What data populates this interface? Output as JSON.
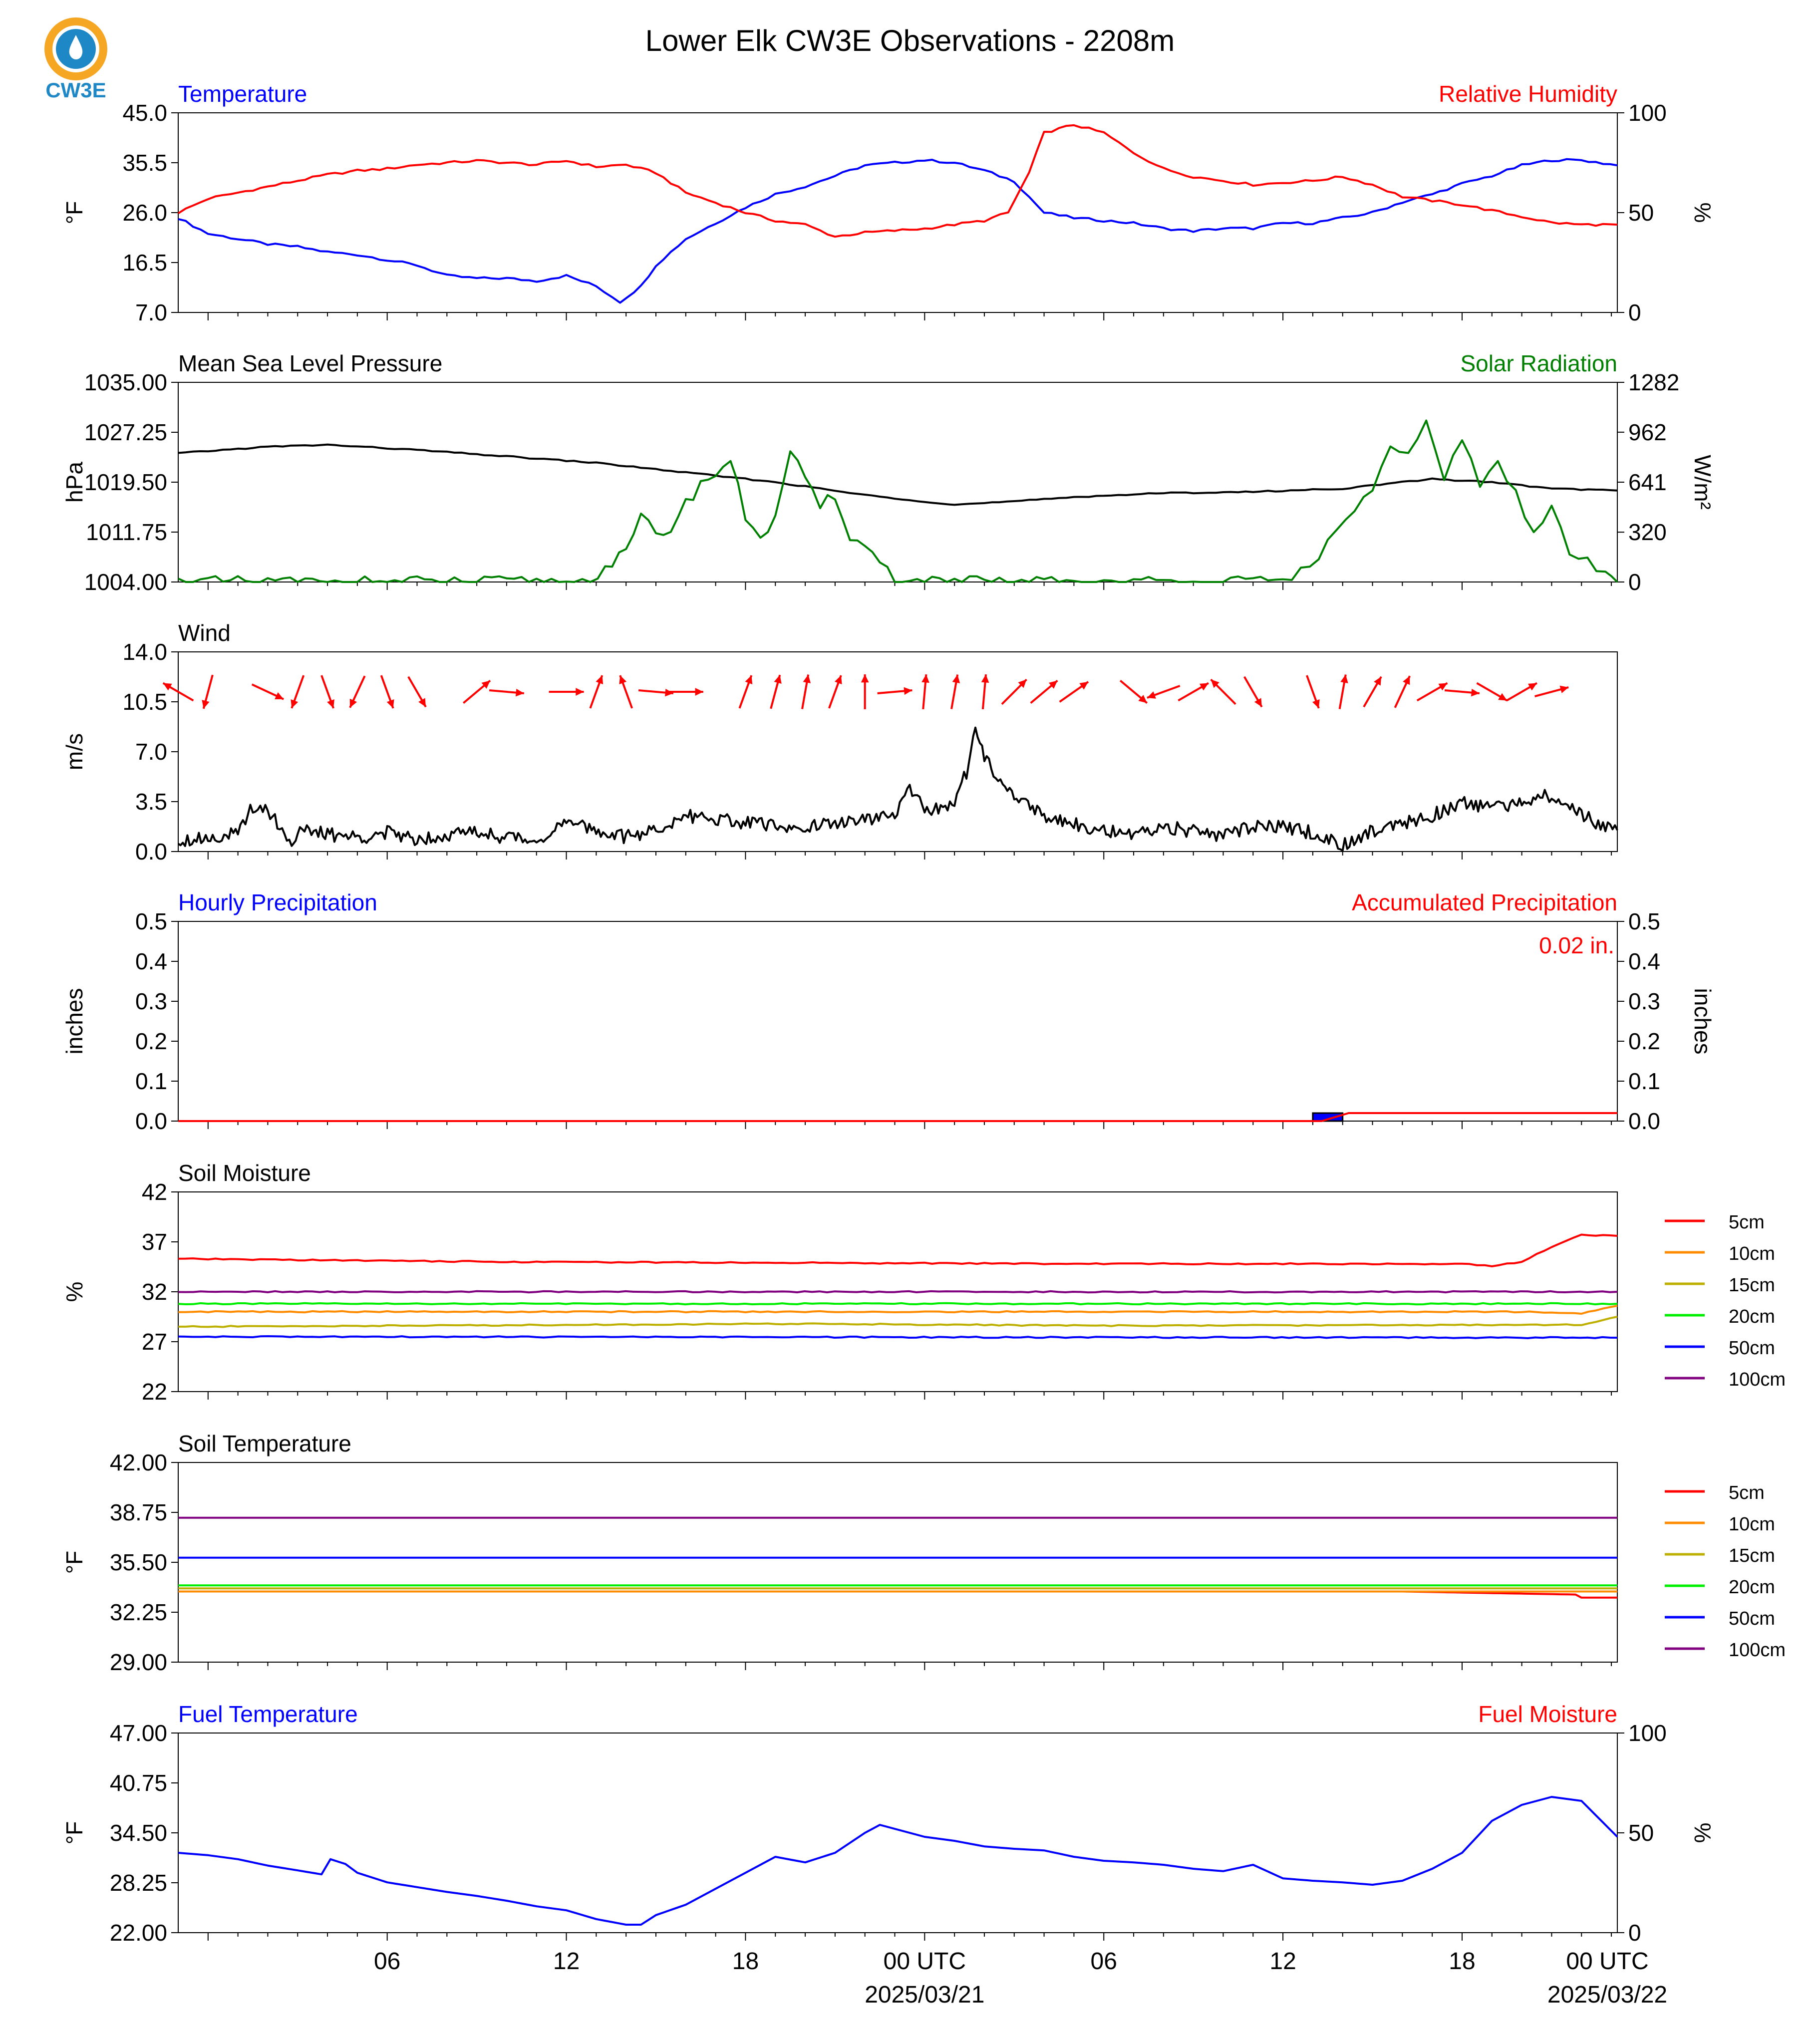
{
  "title": "Lower Elk CW3E Observations - 2208m",
  "logo": {
    "text": "CW3E",
    "icon": "water-drop-sun-logo",
    "color_ring": "#f5a623",
    "color_drop": "#1e88c7"
  },
  "colors": {
    "temp": "#0000ff",
    "rh": "#ff0000",
    "pressure": "#000000",
    "solar": "#008000",
    "wind": "#000000",
    "arrow": "#ff0000"
  },
  "xaxis": {
    "tick_labels": [
      "06",
      "12",
      "18",
      "00 UTC",
      "06",
      "12",
      "18",
      "00 UTC"
    ],
    "date_labels": [
      "2025/03/21",
      "2025/03/22"
    ],
    "range_hours": [
      -1,
      47.2
    ]
  },
  "chart_data": [
    {
      "type": "line",
      "left_title": "Temperature",
      "right_title": "Relative Humidity",
      "ylabel": "°F",
      "y2label": "%",
      "ylim": [
        7.0,
        45.0
      ],
      "y2lim": [
        0,
        100
      ],
      "yticks": [
        "45.0",
        "35.5",
        "26.0",
        "16.5",
        "7.0"
      ],
      "y2ticks": [
        "100",
        "50",
        "0"
      ],
      "series": [
        {
          "name": "Temperature",
          "axis": "left",
          "color": "#0000ff",
          "x": [
            -1,
            0,
            1,
            2,
            3,
            4,
            5,
            6,
            7,
            8,
            9,
            10,
            11,
            12,
            13,
            13.8,
            14.5,
            15,
            16,
            17,
            18,
            19,
            20,
            21,
            22,
            23,
            24,
            25,
            26,
            27,
            28,
            29,
            30,
            31,
            32,
            33,
            34,
            35,
            36,
            37,
            38,
            39,
            40,
            41,
            42,
            43,
            44,
            45,
            46,
            47.2
          ],
          "values": [
            25,
            22,
            21,
            20,
            19.5,
            18.5,
            18,
            17,
            16,
            14,
            13.5,
            13.5,
            13,
            14,
            12,
            9,
            12,
            16,
            21,
            24,
            27,
            29.5,
            31,
            33,
            35,
            35.5,
            36,
            35.5,
            34,
            32,
            26,
            25,
            24.5,
            24,
            23,
            22.5,
            23,
            23,
            24,
            24,
            25,
            26,
            28,
            29.5,
            31.5,
            33,
            35,
            36,
            36,
            35
          ]
        },
        {
          "name": "Relative Humidity",
          "axis": "right",
          "color": "#ff0000",
          "x": [
            -1,
            0,
            1,
            2,
            3,
            4,
            5,
            6,
            7,
            8,
            9,
            10,
            11,
            12,
            13,
            14,
            15,
            16,
            17,
            18,
            19,
            20,
            21,
            22,
            23,
            24,
            25,
            26,
            26.8,
            27.5,
            28,
            29,
            30,
            31,
            32,
            33,
            34,
            35,
            36,
            37,
            38,
            39,
            40,
            41,
            42,
            43,
            44,
            45,
            46,
            47.2
          ],
          "values": [
            50,
            57,
            60,
            63,
            66,
            69,
            71,
            72,
            74,
            75,
            76,
            75,
            74,
            76,
            73,
            74,
            70,
            60,
            55,
            50,
            46,
            44,
            38,
            40,
            41,
            42,
            44,
            46,
            50,
            70,
            90,
            94,
            90,
            80,
            72,
            68,
            66,
            64,
            65,
            66,
            68,
            64,
            58,
            56,
            54,
            51,
            48,
            45,
            44,
            44
          ]
        }
      ]
    },
    {
      "type": "line",
      "left_title": "Mean Sea Level Pressure",
      "right_title": "Solar Radiation",
      "ylabel": "hPa",
      "y2label": "W/m²",
      "ylim": [
        1004.0,
        1035.0
      ],
      "y2lim": [
        0,
        1282
      ],
      "yticks": [
        "1035.00",
        "1027.25",
        "1019.50",
        "1011.75",
        "1004.00"
      ],
      "y2ticks": [
        "1282",
        "962",
        "641",
        "320",
        "0"
      ],
      "series": [
        {
          "name": "Mean Sea Level Pressure",
          "axis": "left",
          "color": "#000000",
          "x": [
            -1,
            2,
            4,
            7,
            10,
            13,
            16,
            19,
            22,
            25,
            27,
            29,
            32,
            35,
            38,
            41,
            43,
            45,
            47.2
          ],
          "values": [
            1024,
            1025,
            1025.3,
            1024.5,
            1023.5,
            1022.5,
            1021,
            1019.5,
            1017.5,
            1016,
            1016.5,
            1017.2,
            1017.8,
            1018,
            1018.5,
            1020,
            1019.5,
            1018.5,
            1018.2
          ]
        },
        {
          "name": "Solar Radiation",
          "axis": "right",
          "color": "#008000",
          "x": [
            -1,
            12,
            12.8,
            13.3,
            14,
            14.5,
            15,
            15.5,
            16,
            16.5,
            17,
            17.5,
            18,
            18.5,
            19,
            19.5,
            20,
            20.5,
            21,
            21.5,
            22,
            22.5,
            23,
            23.5,
            24,
            24.5,
            25,
            25.5,
            26,
            26.5,
            27,
            36,
            36.6,
            37.2,
            37.8,
            38.4,
            39,
            39.6,
            40.2,
            40.8,
            41.4,
            42,
            42.6,
            43.2,
            43.8,
            44.4,
            45,
            45.6,
            46.2,
            46.8,
            47.2
          ],
          "values": [
            0,
            0,
            0,
            100,
            180,
            420,
            300,
            350,
            500,
            630,
            700,
            780,
            420,
            300,
            400,
            850,
            640,
            480,
            560,
            300,
            220,
            150,
            0,
            0,
            0,
            0,
            0,
            0,
            0,
            0,
            0,
            0,
            80,
            180,
            300,
            480,
            600,
            850,
            800,
            1000,
            650,
            940,
            640,
            750,
            560,
            300,
            480,
            200,
            120,
            50,
            0
          ]
        }
      ]
    },
    {
      "type": "line",
      "left_title": "Wind",
      "ylabel": "m/s",
      "ylim": [
        0.0,
        14.0
      ],
      "yticks": [
        "14.0",
        "10.5",
        "7.0",
        "3.5",
        "0.0"
      ],
      "series": [
        {
          "name": "Wind speed",
          "axis": "left",
          "color": "#000000",
          "x": [
            -1,
            0,
            1,
            1.5,
            2,
            2.8,
            3,
            4,
            5,
            6,
            7,
            8,
            9,
            10,
            11,
            12,
            13,
            14,
            15,
            16,
            17,
            18,
            19,
            20,
            21,
            22,
            23,
            23.5,
            24,
            25,
            25.4,
            25.7,
            26,
            27,
            28,
            29,
            30,
            31,
            32,
            33,
            34,
            35,
            36,
            37,
            38,
            39,
            40,
            41,
            42,
            43,
            44,
            45,
            46,
            47.2
          ],
          "values": [
            0.8,
            1.0,
            1.2,
            3.2,
            3.0,
            0.5,
            1.5,
            1.2,
            1.0,
            1.3,
            0.9,
            1.2,
            1.4,
            1.0,
            0.8,
            2.0,
            1.5,
            1.0,
            1.5,
            2.5,
            2.3,
            2.0,
            1.8,
            1.7,
            2.0,
            2.2,
            2.5,
            4.5,
            2.8,
            3.5,
            5.5,
            8.8,
            6.5,
            4.0,
            2.5,
            2.0,
            1.5,
            1.0,
            1.8,
            1.4,
            1.0,
            1.8,
            1.7,
            1.3,
            0.5,
            1.5,
            2.0,
            2.5,
            3.5,
            3.0,
            3.5,
            4.0,
            2.5,
            1.5
          ]
        },
        {
          "name": "Wind direction",
          "type": "arrows",
          "color": "#ff0000",
          "x": [
            -1,
            0,
            2,
            3,
            4,
            5,
            6,
            7,
            9,
            10,
            12,
            13,
            14,
            15,
            16,
            18,
            19,
            20,
            21,
            22,
            23,
            24,
            25,
            26,
            27,
            28,
            29,
            31,
            32,
            33,
            34,
            35,
            37,
            38,
            39,
            40,
            41,
            42,
            43,
            44,
            45
          ],
          "angle_deg": [
            300,
            195,
            115,
            200,
            160,
            205,
            160,
            150,
            50,
            95,
            90,
            20,
            340,
            95,
            90,
            20,
            15,
            10,
            20,
            0,
            85,
            5,
            10,
            5,
            45,
            50,
            55,
            130,
            250,
            60,
            315,
            150,
            160,
            10,
            30,
            25,
            60,
            95,
            120,
            60,
            75
          ]
        }
      ]
    },
    {
      "type": "line",
      "left_title": "Hourly Precipitation",
      "right_title": "Accumulated Precipitation",
      "ylabel": "inches",
      "y2label": "inches",
      "ylim": [
        0.0,
        0.5
      ],
      "y2lim": [
        0.0,
        0.5
      ],
      "yticks": [
        "0.5",
        "0.4",
        "0.3",
        "0.2",
        "0.1",
        "0.0"
      ],
      "y2ticks": [
        "0.5",
        "0.4",
        "0.3",
        "0.2",
        "0.1",
        "0.0"
      ],
      "annotation": "0.02 in.",
      "series": [
        {
          "name": "Hourly Precipitation",
          "axis": "left",
          "color": "#0000ff",
          "x": [
            37.5
          ],
          "values": [
            0.02
          ]
        },
        {
          "name": "Accumulated Precipitation",
          "axis": "right",
          "color": "#ff0000",
          "x": [
            -1,
            37.3,
            38.2,
            47.2
          ],
          "values": [
            0,
            0,
            0.02,
            0.02
          ]
        }
      ]
    },
    {
      "type": "line",
      "left_title": "Soil Moisture",
      "ylabel": "%",
      "ylim": [
        22,
        42
      ],
      "yticks": [
        "42",
        "37",
        "32",
        "27",
        "22"
      ],
      "legend": [
        {
          "name": "5cm",
          "color": "#ff0000"
        },
        {
          "name": "10cm",
          "color": "#ff8c00"
        },
        {
          "name": "15cm",
          "color": "#bdb000"
        },
        {
          "name": "20cm",
          "color": "#00ee00"
        },
        {
          "name": "50cm",
          "color": "#0000ff"
        },
        {
          "name": "100cm",
          "color": "#800080"
        }
      ],
      "series": [
        {
          "name": "5cm",
          "color": "#ff0000",
          "x": [
            -1,
            10,
            30,
            42,
            43,
            44,
            45,
            46,
            47.2
          ],
          "values": [
            35.3,
            35.0,
            34.8,
            34.8,
            34.6,
            35.0,
            36.5,
            37.7,
            37.6
          ]
        },
        {
          "name": "10cm",
          "color": "#ff8c00",
          "x": [
            -1,
            44,
            46,
            47.2
          ],
          "values": [
            30.0,
            30.0,
            29.8,
            30.6
          ]
        },
        {
          "name": "15cm",
          "color": "#bdb000",
          "x": [
            -1,
            20,
            30,
            44,
            46,
            47.2
          ],
          "values": [
            28.5,
            28.8,
            28.6,
            28.7,
            28.7,
            29.5
          ]
        },
        {
          "name": "20cm",
          "color": "#00ee00",
          "x": [
            -1,
            47.2
          ],
          "values": [
            30.8,
            30.8
          ]
        },
        {
          "name": "50cm",
          "color": "#0000ff",
          "x": [
            -1,
            47.2
          ],
          "values": [
            27.5,
            27.4
          ]
        },
        {
          "name": "100cm",
          "color": "#800080",
          "x": [
            -1,
            47.2
          ],
          "values": [
            32.0,
            32.0
          ]
        }
      ]
    },
    {
      "type": "line",
      "left_title": "Soil Temperature",
      "ylabel": "°F",
      "ylim": [
        29.0,
        42.0
      ],
      "yticks": [
        "42.00",
        "38.75",
        "35.50",
        "32.25",
        "29.00"
      ],
      "legend": [
        {
          "name": "5cm",
          "color": "#ff0000"
        },
        {
          "name": "10cm",
          "color": "#ff8c00"
        },
        {
          "name": "15cm",
          "color": "#bdb000"
        },
        {
          "name": "20cm",
          "color": "#00ee00"
        },
        {
          "name": "50cm",
          "color": "#0000ff"
        },
        {
          "name": "100cm",
          "color": "#800080"
        }
      ],
      "series": [
        {
          "name": "5cm",
          "color": "#ff0000",
          "x": [
            -1,
            40,
            45.8,
            46,
            47.2
          ],
          "values": [
            33.6,
            33.6,
            33.4,
            33.2,
            33.2
          ]
        },
        {
          "name": "10cm",
          "color": "#ff8c00",
          "x": [
            -1,
            47.2
          ],
          "values": [
            33.6,
            33.6
          ]
        },
        {
          "name": "15cm",
          "color": "#bdb000",
          "x": [
            -1,
            47.2
          ],
          "values": [
            33.8,
            33.8
          ]
        },
        {
          "name": "20cm",
          "color": "#00ee00",
          "x": [
            -1,
            47.2
          ],
          "values": [
            34.0,
            34.0
          ]
        },
        {
          "name": "50cm",
          "color": "#0000ff",
          "x": [
            -1,
            47.2
          ],
          "values": [
            35.8,
            35.8
          ]
        },
        {
          "name": "100cm",
          "color": "#800080",
          "x": [
            -1,
            47.2
          ],
          "values": [
            38.4,
            38.4
          ]
        }
      ]
    },
    {
      "type": "line",
      "left_title": "Fuel Temperature",
      "right_title": "Fuel Moisture",
      "ylabel": "°F",
      "y2label": "%",
      "ylim": [
        22.0,
        47.0
      ],
      "y2lim": [
        0,
        100
      ],
      "yticks": [
        "47.00",
        "40.75",
        "34.50",
        "28.25",
        "22.00"
      ],
      "y2ticks": [
        "100",
        "50",
        "0"
      ],
      "series": [
        {
          "name": "Fuel Temperature",
          "axis": "left",
          "color": "#0000ff",
          "x": [
            -1,
            0,
            1,
            2,
            3,
            3.8,
            4.1,
            4.6,
            5,
            6,
            7,
            8,
            9,
            10,
            11,
            12,
            13,
            14,
            14.5,
            15,
            16,
            17,
            18,
            19,
            20,
            21,
            22,
            22.5,
            23,
            24,
            25,
            26,
            27,
            28,
            29,
            30,
            31,
            32,
            33,
            34,
            35,
            36,
            37,
            38,
            39,
            40,
            41,
            42,
            43,
            44,
            45,
            46,
            47.2
          ],
          "values": [
            32,
            31.7,
            31.2,
            30.4,
            29.8,
            29.3,
            31.2,
            30.6,
            29.5,
            28.3,
            27.7,
            27.1,
            26.6,
            26.0,
            25.3,
            24.8,
            23.7,
            23.0,
            23.0,
            24.2,
            25.5,
            27.5,
            29.5,
            31.5,
            30.8,
            32.0,
            34.5,
            35.5,
            35.0,
            34.0,
            33.5,
            32.8,
            32.5,
            32.3,
            31.5,
            31.0,
            30.8,
            30.5,
            30.0,
            29.7,
            30.5,
            28.8,
            28.5,
            28.3,
            28.0,
            28.5,
            30.0,
            32.0,
            36.0,
            38.0,
            39.0,
            38.5,
            34.0
          ]
        }
      ]
    }
  ]
}
